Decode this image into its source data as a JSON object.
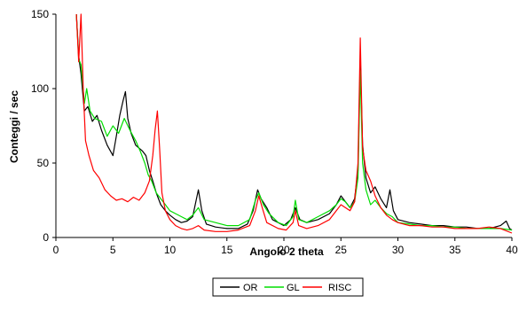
{
  "chart_data": {
    "type": "line",
    "title": "",
    "xlabel": "Angolo 2 theta",
    "ylabel": "Conteggi / sec",
    "xlim": [
      0,
      40
    ],
    "ylim": [
      0,
      150
    ],
    "x_ticks": [
      "0",
      "5",
      "10",
      "15",
      "20",
      "25",
      "30",
      "35",
      "40"
    ],
    "y_ticks": [
      "0",
      "50",
      "100",
      "150"
    ],
    "grid": false,
    "legend_position": "bottom",
    "series": [
      {
        "name": "OR",
        "color": "#000000",
        "x": [
          1.8,
          2.0,
          2.2,
          2.5,
          2.8,
          3.2,
          3.6,
          4.0,
          4.5,
          5.0,
          5.3,
          5.6,
          5.9,
          6.1,
          6.3,
          6.6,
          7.0,
          7.3,
          7.6,
          7.9,
          8.2,
          8.5,
          8.8,
          9.2,
          9.6,
          10.0,
          10.5,
          11.0,
          11.5,
          12.0,
          12.3,
          12.5,
          12.8,
          13.2,
          14.0,
          15.0,
          16.0,
          16.8,
          17.3,
          17.7,
          18.0,
          18.5,
          19.0,
          20.0,
          20.6,
          21.0,
          21.4,
          22.0,
          23.0,
          24.0,
          24.6,
          25.0,
          25.4,
          25.8,
          26.2,
          26.5,
          26.7,
          26.9,
          27.2,
          27.6,
          28.0,
          28.5,
          29.0,
          29.3,
          29.6,
          30.0,
          31.0,
          32.0,
          33.0,
          34.0,
          35.0,
          36.0,
          37.0,
          38.0,
          39.0,
          39.5,
          39.8,
          40.0
        ],
        "values": [
          150,
          122,
          110,
          85,
          88,
          78,
          82,
          72,
          62,
          55,
          68,
          82,
          92,
          98,
          80,
          70,
          62,
          60,
          58,
          55,
          45,
          38,
          30,
          22,
          18,
          15,
          12,
          10,
          11,
          14,
          25,
          32,
          18,
          9,
          7,
          6,
          6,
          9,
          18,
          32,
          26,
          20,
          12,
          8,
          12,
          20,
          12,
          10,
          12,
          16,
          22,
          28,
          24,
          20,
          26,
          45,
          120,
          62,
          40,
          30,
          34,
          26,
          20,
          32,
          18,
          12,
          10,
          9,
          8,
          8,
          7,
          7,
          6,
          6,
          8,
          11,
          6,
          5
        ]
      },
      {
        "name": "GL",
        "color": "#00dd00",
        "x": [
          1.8,
          2.0,
          2.2,
          2.5,
          2.7,
          3.0,
          3.4,
          4.0,
          4.5,
          5.0,
          5.5,
          6.0,
          6.5,
          7.0,
          7.4,
          7.8,
          8.1,
          8.4,
          8.8,
          9.2,
          9.6,
          10.0,
          10.5,
          11.0,
          11.5,
          12.0,
          12.5,
          13.0,
          14.0,
          15.0,
          16.0,
          17.0,
          17.5,
          17.8,
          18.2,
          18.7,
          19.5,
          20.2,
          20.8,
          21.0,
          21.3,
          22.0,
          23.0,
          24.0,
          24.6,
          25.0,
          25.4,
          25.8,
          26.2,
          26.5,
          26.7,
          26.9,
          27.2,
          27.6,
          28.0,
          28.5,
          29.0,
          29.5,
          30.0,
          31.0,
          32.0,
          33.0,
          34.0,
          35.0,
          36.0,
          37.0,
          38.0,
          39.0,
          40.0
        ],
        "values": [
          150,
          120,
          116,
          90,
          100,
          85,
          80,
          78,
          68,
          75,
          70,
          80,
          72,
          65,
          58,
          50,
          42,
          38,
          30,
          26,
          22,
          18,
          16,
          14,
          12,
          15,
          20,
          12,
          10,
          8,
          8,
          12,
          25,
          30,
          22,
          16,
          10,
          8,
          14,
          25,
          12,
          10,
          14,
          18,
          22,
          26,
          24,
          20,
          24,
          40,
          112,
          50,
          32,
          22,
          25,
          20,
          16,
          14,
          10,
          9,
          8,
          8,
          7,
          7,
          6,
          6,
          6,
          6,
          5
        ]
      },
      {
        "name": "RISC",
        "color": "#ff0000",
        "x": [
          1.8,
          2.0,
          2.2,
          2.4,
          2.6,
          2.9,
          3.3,
          3.8,
          4.3,
          4.8,
          5.3,
          5.8,
          6.3,
          6.8,
          7.3,
          7.8,
          8.2,
          8.5,
          8.7,
          8.9,
          9.1,
          9.3,
          9.6,
          10.0,
          10.5,
          11.0,
          11.5,
          12.0,
          12.5,
          13.0,
          14.0,
          15.0,
          16.0,
          17.0,
          17.5,
          17.8,
          18.1,
          18.5,
          19.5,
          20.2,
          20.8,
          21.0,
          21.3,
          22.0,
          23.0,
          24.0,
          24.6,
          25.0,
          25.4,
          25.8,
          26.2,
          26.5,
          26.7,
          26.9,
          27.2,
          27.6,
          28.0,
          28.5,
          29.0,
          29.5,
          30.0,
          31.0,
          32.0,
          33.0,
          34.0,
          35.0,
          36.0,
          37.0,
          38.0,
          39.0,
          40.0
        ],
        "values": [
          150,
          118,
          150,
          100,
          65,
          55,
          45,
          40,
          32,
          28,
          25,
          26,
          24,
          27,
          25,
          30,
          38,
          55,
          72,
          85,
          60,
          30,
          18,
          12,
          8,
          6,
          5,
          6,
          8,
          5,
          4,
          4,
          5,
          8,
          18,
          28,
          20,
          10,
          6,
          5,
          10,
          18,
          8,
          6,
          8,
          12,
          18,
          22,
          20,
          18,
          24,
          50,
          134,
          60,
          45,
          38,
          28,
          20,
          15,
          12,
          10,
          8,
          8,
          7,
          7,
          6,
          6,
          6,
          7,
          6,
          3
        ]
      }
    ]
  }
}
